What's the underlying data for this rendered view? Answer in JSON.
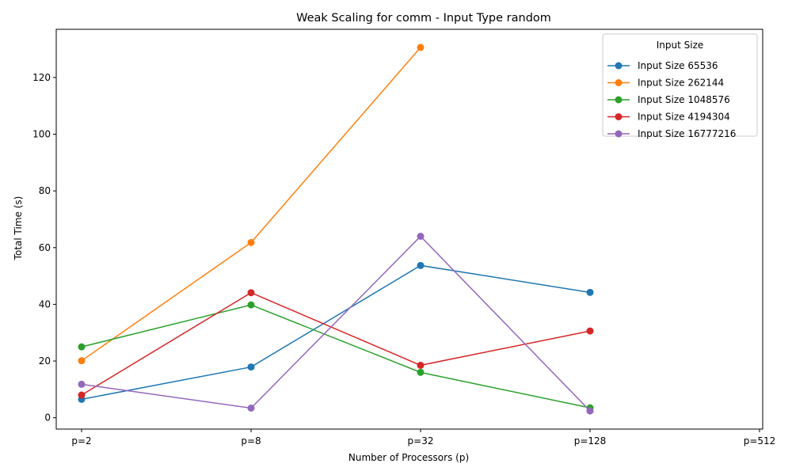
{
  "chart_data": {
    "type": "line",
    "title": "Weak Scaling for comm - Input Type random",
    "xlabel": "Number of Processors (p)",
    "ylabel": "Total Time (s)",
    "categories": [
      "p=2",
      "p=8",
      "p=32",
      "p=128",
      "p=512"
    ],
    "ylim": [
      -4,
      137
    ],
    "yticks": [
      0,
      20,
      40,
      60,
      80,
      100,
      120
    ],
    "grid": false,
    "legend": {
      "title": "Input Size",
      "placement": "top-right"
    },
    "series": [
      {
        "name": "Input Size 65536",
        "color": "#1f77b4",
        "values": [
          6.5,
          17.9,
          53.7,
          44.2,
          null
        ]
      },
      {
        "name": "Input Size 262144",
        "color": "#ff7f0e",
        "values": [
          20.1,
          61.8,
          130.6,
          null,
          null
        ]
      },
      {
        "name": "Input Size 1048576",
        "color": "#2ca02c",
        "values": [
          25.0,
          39.8,
          16.0,
          3.5,
          null
        ]
      },
      {
        "name": "Input Size 4194304",
        "color": "#d62728",
        "values": [
          8.0,
          44.1,
          18.5,
          30.6,
          null
        ]
      },
      {
        "name": "Input Size 16777216",
        "color": "#9467bd",
        "values": [
          11.8,
          3.4,
          64.0,
          2.4,
          null
        ]
      }
    ]
  }
}
